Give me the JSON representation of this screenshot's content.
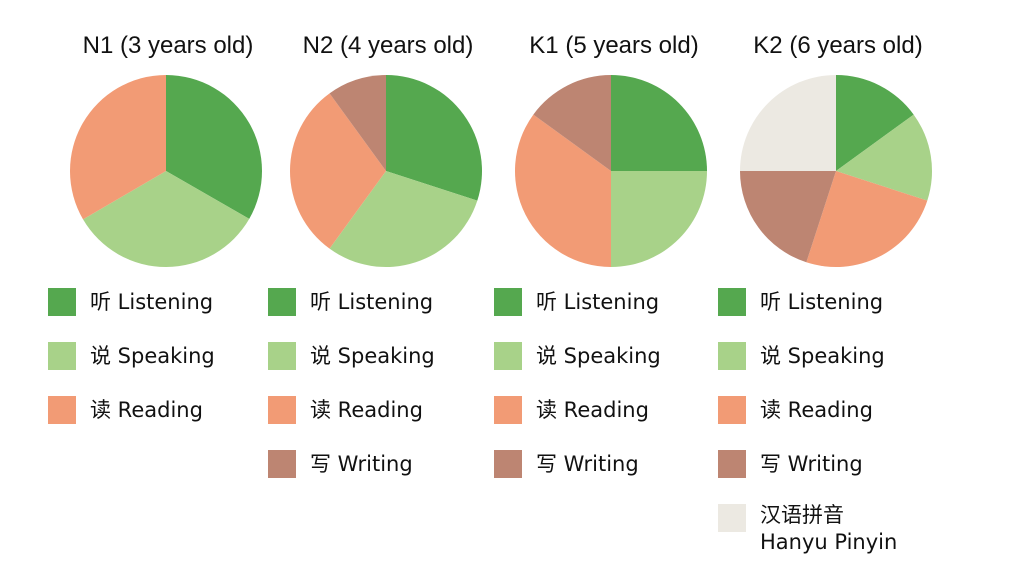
{
  "colors": {
    "listening": "#55a84f",
    "speaking": "#a8d289",
    "reading": "#f29b75",
    "writing": "#bd8572",
    "pinyin": "#ece9e2"
  },
  "chart_data": [
    {
      "type": "pie",
      "title": "N1 (3 years old)",
      "slices": [
        {
          "label": "听 Listening",
          "key": "listening",
          "value": 33.3
        },
        {
          "label": "说 Speaking",
          "key": "speaking",
          "value": 33.3
        },
        {
          "label": "读 Reading",
          "key": "reading",
          "value": 33.4
        }
      ]
    },
    {
      "type": "pie",
      "title": "N2 (4 years old)",
      "slices": [
        {
          "label": "听 Listening",
          "key": "listening",
          "value": 30
        },
        {
          "label": "说 Speaking",
          "key": "speaking",
          "value": 30
        },
        {
          "label": "读 Reading",
          "key": "reading",
          "value": 30
        },
        {
          "label": "写 Writing",
          "key": "writing",
          "value": 10
        }
      ]
    },
    {
      "type": "pie",
      "title": "K1 (5 years old)",
      "slices": [
        {
          "label": "听 Listening",
          "key": "listening",
          "value": 25
        },
        {
          "label": "说 Speaking",
          "key": "speaking",
          "value": 25
        },
        {
          "label": "读 Reading",
          "key": "reading",
          "value": 35
        },
        {
          "label": "写 Writing",
          "key": "writing",
          "value": 15
        }
      ]
    },
    {
      "type": "pie",
      "title": "K2 (6 years old)",
      "slices": [
        {
          "label": "听 Listening",
          "key": "listening",
          "value": 15
        },
        {
          "label": "说 Speaking",
          "key": "speaking",
          "value": 15
        },
        {
          "label": "读 Reading",
          "key": "reading",
          "value": 25
        },
        {
          "label": "写 Writing",
          "key": "writing",
          "value": 20
        },
        {
          "label": "汉语拼音 Hanyu Pinyin",
          "key": "pinyin",
          "value": 25
        }
      ]
    }
  ]
}
